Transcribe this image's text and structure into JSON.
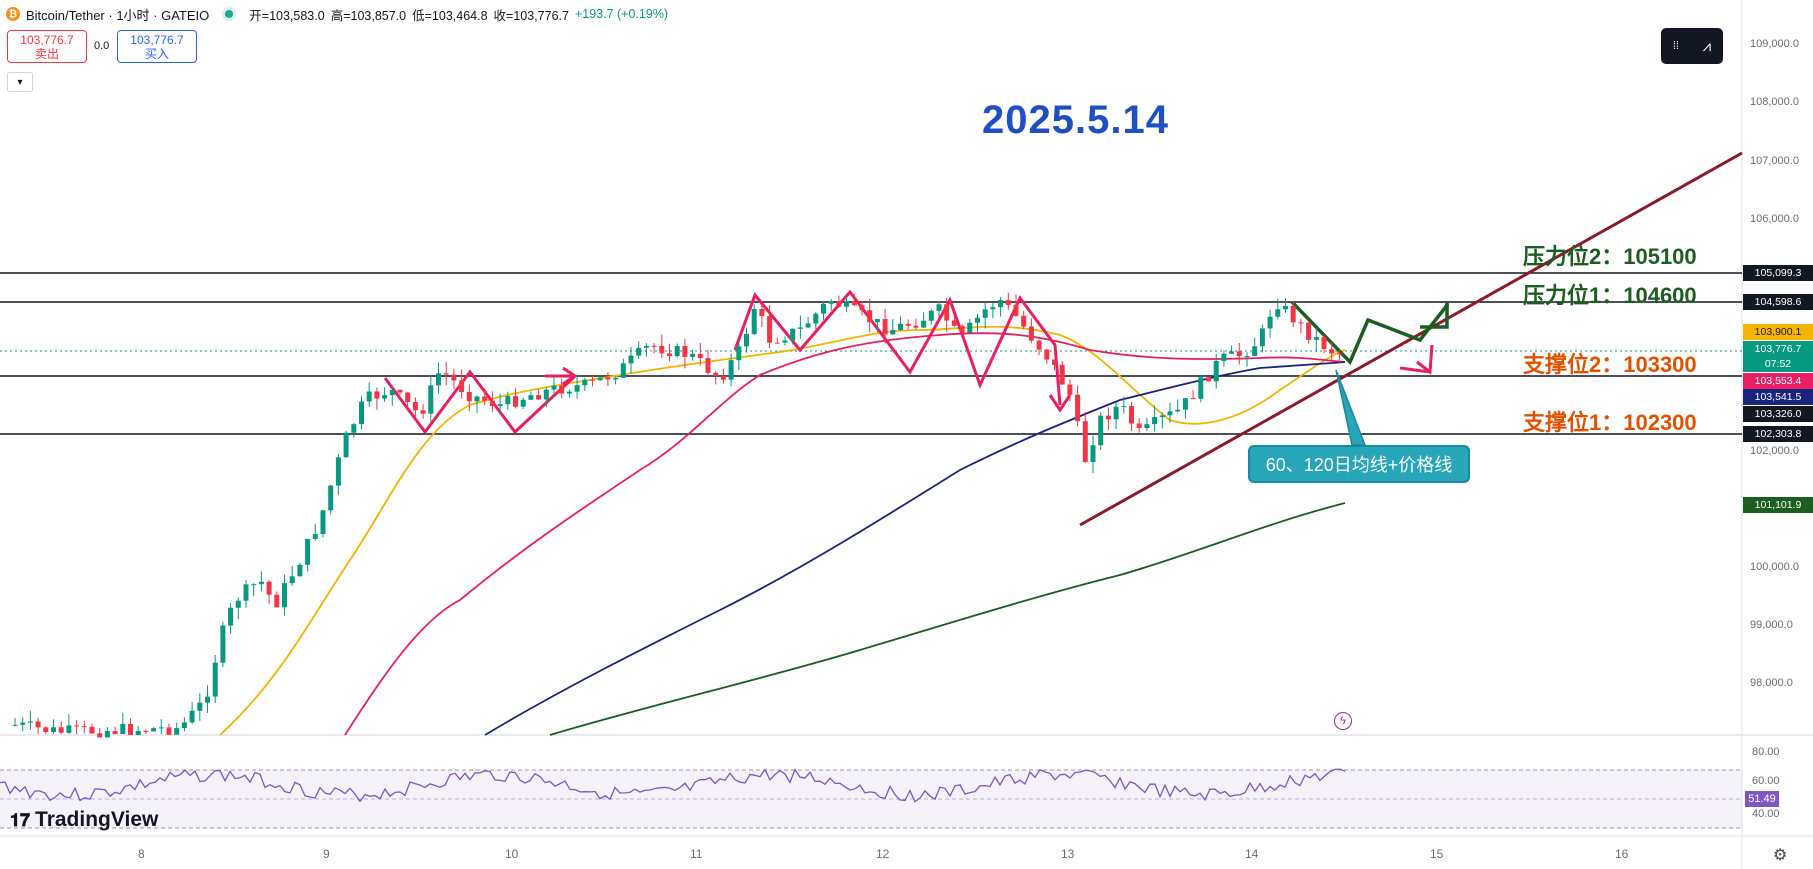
{
  "header": {
    "coin_icon": "bitcoin-icon",
    "symbol": "Bitcoin/Tether · 1小时 · GATEIO",
    "open": "开=103,583.0",
    "high": "高=103,857.0",
    "low": "低=103,464.8",
    "close": "收=103,776.7",
    "change": "+193.7 (+0.19%)"
  },
  "trade": {
    "sell_price": "103,776.7",
    "sell_label": "卖出",
    "spread": "0.0",
    "buy_price": "103,776.7",
    "buy_label": "买入",
    "collapse_icon": "chevron-down-icon"
  },
  "annotation": {
    "date": "2025.5.14",
    "resistance2": "压力位2：105100",
    "resistance1": "压力位1：104600",
    "support2": "支撑位2：103300",
    "support1": "支撑位1：102300",
    "callout": "60、120日均线+价格线"
  },
  "price_axis": {
    "ticks": [
      "109,000.0",
      "108,000.0",
      "107,000.0",
      "106,000.0",
      "102,000.0",
      "100,000.0",
      "99,000.0",
      "98,000.0"
    ],
    "labels": [
      {
        "text": "105,099.3",
        "color": "#131722"
      },
      {
        "text": "104,598.6",
        "color": "#131722"
      },
      {
        "text": "103,900.1",
        "color": "#f5b400"
      },
      {
        "text": "103,776.7",
        "color": "#089981"
      },
      {
        "text": "07:52",
        "color": "#089981"
      },
      {
        "text": "103,553.4",
        "color": "#e91e63"
      },
      {
        "text": "103,541.5",
        "color": "#1a237e"
      },
      {
        "text": "103,326.0",
        "color": "#131722"
      },
      {
        "text": "102,303.8",
        "color": "#131722"
      },
      {
        "text": "101,101.9",
        "color": "#1b5e20"
      }
    ]
  },
  "rsi": {
    "ticks": [
      "80.00",
      "60.00",
      "40.00"
    ],
    "value": "51.49"
  },
  "time_axis": {
    "ticks": [
      "8",
      "9",
      "10",
      "11",
      "12",
      "13",
      "14",
      "15",
      "16"
    ]
  },
  "branding": {
    "logo_text": "TradingView"
  },
  "chart_data": {
    "type": "candlestick",
    "symbol": "BTC/USDT",
    "interval": "1小时",
    "ylim": [
      97400,
      109500
    ],
    "horizontal_lines": [
      105099.3,
      104598.6,
      103326.0,
      102303.8
    ],
    "last_price": 103776.7,
    "moving_averages": [
      {
        "color": "#f5b400",
        "last": 103900.1
      },
      {
        "color": "#e91e63",
        "last": 103553.4
      },
      {
        "color": "#1a237e",
        "last": 103541.5
      },
      {
        "color": "#1b5e20",
        "last": 101101.9
      }
    ],
    "rsi_last": 51.49
  }
}
